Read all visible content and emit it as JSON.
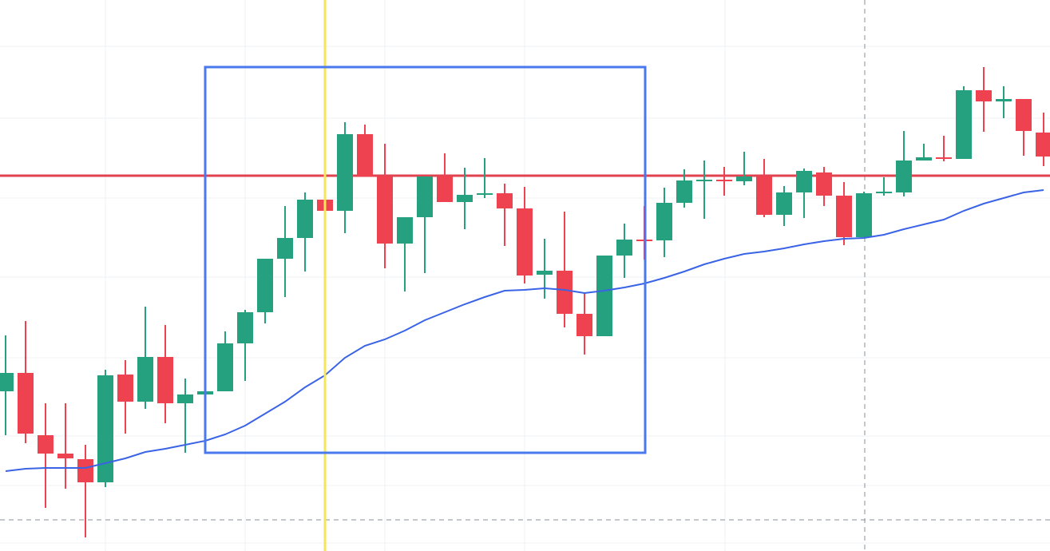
{
  "chart_data": {
    "type": "candlestick",
    "ylim": [
      0,
      690
    ],
    "up_color": "#26a17f",
    "down_color": "#ef4250",
    "open": [
      200,
      223,
      145,
      122,
      115,
      86,
      221,
      187,
      243,
      185,
      196,
      200,
      260,
      299,
      366,
      392,
      440,
      426,
      522,
      469,
      385,
      418,
      469,
      437,
      446,
      448,
      429,
      346,
      351,
      297,
      269,
      370,
      390,
      389,
      436,
      464,
      465,
      463,
      469,
      421,
      449,
      474,
      445,
      393,
      449,
      449,
      489,
      493,
      491,
      577,
      563,
      566,
      524
    ],
    "high": [
      270,
      288,
      185,
      185,
      133,
      227,
      239,
      306,
      283,
      216,
      215,
      275,
      302,
      366,
      432,
      449,
      452,
      537,
      534,
      510,
      418,
      469,
      498,
      480,
      492,
      460,
      456,
      391,
      425,
      323,
      370,
      410,
      432,
      455,
      478,
      489,
      481,
      500,
      491,
      457,
      479,
      481,
      462,
      450,
      468,
      526,
      510,
      520,
      582,
      606,
      582,
      566,
      549
    ],
    "low": [
      145,
      135,
      54,
      78,
      17,
      80,
      147,
      178,
      160,
      123,
      135,
      200,
      213,
      285,
      318,
      350,
      370,
      398,
      469,
      354,
      325,
      348,
      437,
      403,
      442,
      382,
      335,
      316,
      280,
      246,
      269,
      342,
      365,
      368,
      430,
      416,
      445,
      458,
      418,
      407,
      417,
      432,
      383,
      393,
      445,
      444,
      489,
      488,
      491,
      525,
      542,
      495,
      482
    ],
    "close": [
      223,
      147,
      122,
      116,
      86,
      220,
      187,
      243,
      185,
      196,
      200,
      260,
      299,
      366,
      392,
      440,
      426,
      522,
      469,
      385,
      418,
      469,
      437,
      446,
      448,
      429,
      345,
      351,
      297,
      269,
      370,
      390,
      389,
      436,
      464,
      465,
      464,
      469,
      421,
      449,
      476,
      445,
      393,
      448,
      450,
      489,
      493,
      491,
      577,
      563,
      566,
      526,
      494
    ],
    "ma": {
      "color": "#3a63e6",
      "values": [
        100,
        103,
        104,
        104,
        104,
        110,
        116,
        124,
        128,
        133,
        138,
        146,
        157,
        172,
        187,
        205,
        220,
        242,
        257,
        265,
        276,
        289,
        299,
        309,
        318,
        326,
        327,
        329,
        327,
        323,
        326,
        330,
        335,
        342,
        350,
        359,
        366,
        372,
        375,
        379,
        384,
        388,
        391,
        392,
        396,
        403,
        409,
        415,
        426,
        435,
        442,
        449,
        452
      ]
    },
    "price_line": {
      "value": 470,
      "color": "#e0434f"
    }
  }
}
